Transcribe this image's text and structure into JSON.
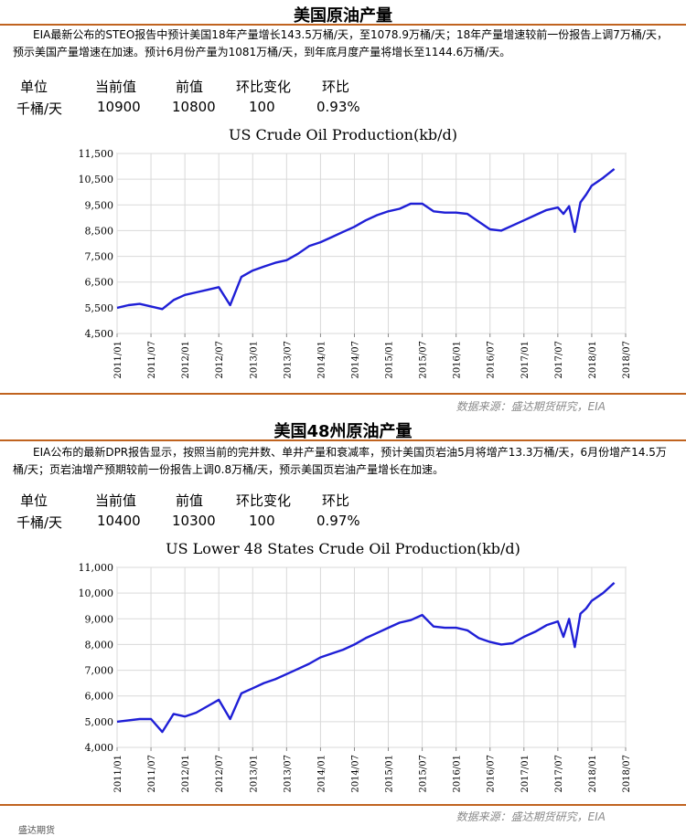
{
  "sections": [
    {
      "title": "美国原油产量",
      "description": "EIA最新公布的STEO报告中预计美国18年产量增长143.5万桶/天，至1078.9万桶/天；18年产量增速较前一份报告上调7万桶/天，预示美国产量增速在加速。预计6月份产量为1081万桶/天，到年底月度产量将增长至1144.6万桶/天。",
      "stats": {
        "headers": [
          "单位",
          "当前值",
          "前值",
          "环比变化",
          "环比"
        ],
        "values": [
          "千桶/天",
          "10900",
          "10800",
          "100",
          "0.93%"
        ]
      },
      "source": "数据来源：盛达期货研究，EIA"
    },
    {
      "title": "美国48州原油产量",
      "description": "EIA公布的最新DPR报告显示，按照当前的完井数、单井产量和衰减率，预计美国页岩油5月将增产13.3万桶/天，6月份增产14.5万桶/天；页岩油增产预期较前一份报告上调0.8万桶/天，预示美国页岩油产量增长在加速。",
      "stats": {
        "headers": [
          "单位",
          "当前值",
          "前值",
          "环比变化",
          "环比"
        ],
        "values": [
          "千桶/天",
          "10400",
          "10300",
          "100",
          "0.97%"
        ]
      },
      "source": "数据来源：盛达期货研究，EIA"
    }
  ],
  "footer_text": "盛达期货",
  "colors": {
    "accent_rule": "#c0631f",
    "series_line": "#1f1fd6",
    "grid": "#d9d9d9"
  },
  "chart_data": [
    {
      "type": "line",
      "title": "US Crude Oil Production(kb/d)",
      "ylim": [
        4500,
        11500
      ],
      "yticks": [
        4500,
        5500,
        6500,
        7500,
        8500,
        9500,
        10500,
        11500
      ],
      "xticks": [
        "2011/01",
        "2011/07",
        "2012/01",
        "2012/07",
        "2013/01",
        "2013/07",
        "2014/01",
        "2014/07",
        "2015/01",
        "2015/07",
        "2016/01",
        "2016/07",
        "2017/01",
        "2017/07",
        "2018/01",
        "2018/07"
      ],
      "grid": true,
      "series": [
        {
          "x": [
            "2011/01",
            "2011/03",
            "2011/05",
            "2011/07",
            "2011/09",
            "2011/11",
            "2012/01",
            "2012/03",
            "2012/05",
            "2012/07",
            "2012/09",
            "2012/11",
            "2013/01",
            "2013/03",
            "2013/05",
            "2013/07",
            "2013/09",
            "2013/11",
            "2014/01",
            "2014/03",
            "2014/05",
            "2014/07",
            "2014/09",
            "2014/11",
            "2015/01",
            "2015/03",
            "2015/05",
            "2015/07",
            "2015/09",
            "2015/11",
            "2016/01",
            "2016/03",
            "2016/05",
            "2016/07",
            "2016/09",
            "2016/11",
            "2017/01",
            "2017/03",
            "2017/05",
            "2017/07",
            "2017/08",
            "2017/09",
            "2017/10",
            "2017/11",
            "2017/12",
            "2018/01",
            "2018/03",
            "2018/05"
          ],
          "values": [
            5500,
            5600,
            5650,
            5550,
            5450,
            5800,
            6000,
            6100,
            6200,
            6300,
            5600,
            6700,
            6950,
            7100,
            7250,
            7350,
            7600,
            7900,
            8050,
            8250,
            8450,
            8650,
            8900,
            9100,
            9250,
            9350,
            9550,
            9550,
            9250,
            9200,
            9200,
            9150,
            8850,
            8550,
            8500,
            8700,
            8900,
            9100,
            9300,
            9400,
            9150,
            9450,
            8450,
            9600,
            9900,
            10250,
            10550,
            10900
          ]
        }
      ]
    },
    {
      "type": "line",
      "title": "US Lower 48 States Crude Oil Production(kb/d)",
      "ylim": [
        4000,
        11000
      ],
      "yticks": [
        4000,
        5000,
        6000,
        7000,
        8000,
        9000,
        10000,
        11000
      ],
      "xticks": [
        "2011/01",
        "2011/07",
        "2012/01",
        "2012/07",
        "2013/01",
        "2013/07",
        "2014/01",
        "2014/07",
        "2015/01",
        "2015/07",
        "2016/01",
        "2016/07",
        "2017/01",
        "2017/07",
        "2018/01",
        "2018/07"
      ],
      "grid": true,
      "series": [
        {
          "x": [
            "2011/01",
            "2011/03",
            "2011/05",
            "2011/07",
            "2011/09",
            "2011/11",
            "2012/01",
            "2012/03",
            "2012/05",
            "2012/07",
            "2012/09",
            "2012/11",
            "2013/01",
            "2013/03",
            "2013/05",
            "2013/07",
            "2013/09",
            "2013/11",
            "2014/01",
            "2014/03",
            "2014/05",
            "2014/07",
            "2014/09",
            "2014/11",
            "2015/01",
            "2015/03",
            "2015/05",
            "2015/07",
            "2015/09",
            "2015/11",
            "2016/01",
            "2016/03",
            "2016/05",
            "2016/07",
            "2016/09",
            "2016/11",
            "2017/01",
            "2017/03",
            "2017/05",
            "2017/07",
            "2017/08",
            "2017/09",
            "2017/10",
            "2017/11",
            "2017/12",
            "2018/01",
            "2018/03",
            "2018/05"
          ],
          "values": [
            5000,
            5050,
            5100,
            5100,
            4600,
            5300,
            5200,
            5350,
            5600,
            5850,
            5100,
            6100,
            6300,
            6500,
            6650,
            6850,
            7050,
            7250,
            7500,
            7650,
            7800,
            8000,
            8250,
            8450,
            8650,
            8850,
            8950,
            9150,
            8700,
            8650,
            8650,
            8550,
            8250,
            8100,
            8000,
            8050,
            8300,
            8500,
            8750,
            8900,
            8300,
            9000,
            7900,
            9200,
            9400,
            9700,
            10000,
            10400
          ]
        }
      ]
    }
  ]
}
